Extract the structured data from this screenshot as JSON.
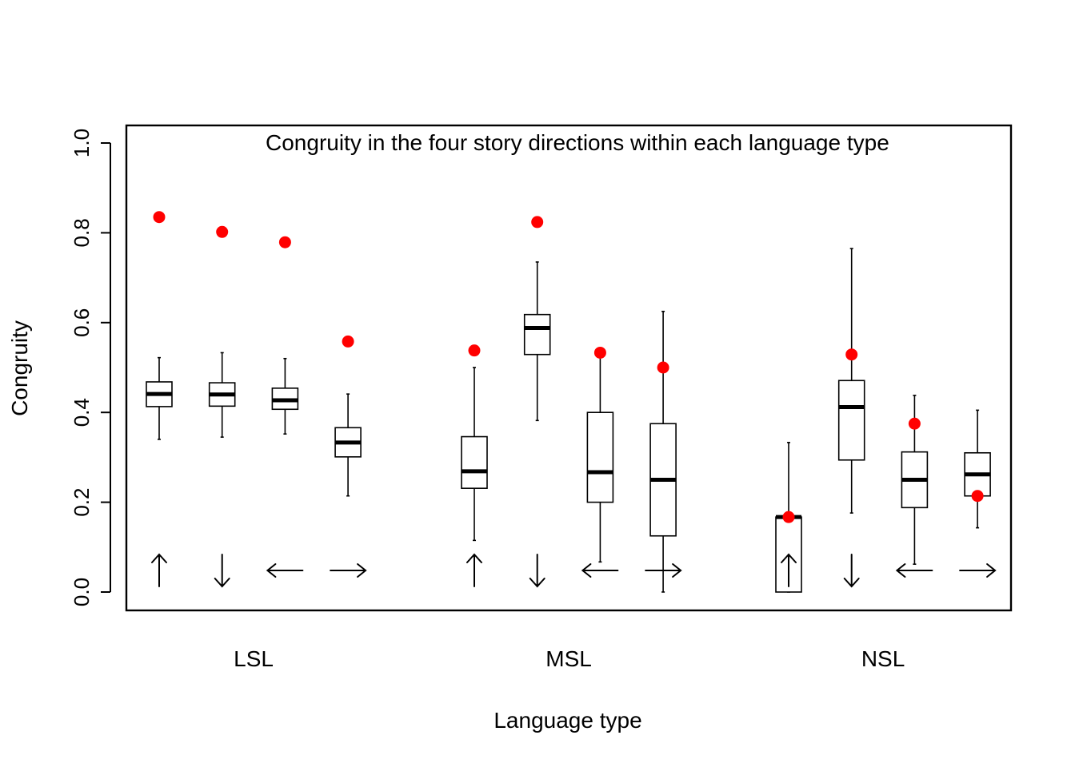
{
  "chart_data": {
    "type": "boxplot",
    "title": "Congruity in the four story directions within each language type",
    "xlabel": "Language type",
    "ylabel": "Congruity",
    "ylim": [
      0.0,
      1.0
    ],
    "yticks": [
      "0.0",
      "0.2",
      "0.4",
      "0.6",
      "0.8",
      "1.0"
    ],
    "ytick_values": [
      0.0,
      0.2,
      0.4,
      0.6,
      0.8,
      1.0
    ],
    "colors": {
      "box": "#000000",
      "observed_point": "#ff0000"
    },
    "groups": [
      {
        "label": "LSL",
        "boxes": [
          {
            "direction": "up",
            "arrow": "↑",
            "min": 0.34,
            "q1": 0.413,
            "median": 0.441,
            "q3": 0.468,
            "max": 0.522,
            "observed": 0.835
          },
          {
            "direction": "down",
            "arrow": "↓",
            "min": 0.345,
            "q1": 0.414,
            "median": 0.44,
            "q3": 0.466,
            "max": 0.533,
            "observed": 0.802
          },
          {
            "direction": "left",
            "arrow": "←",
            "min": 0.352,
            "q1": 0.407,
            "median": 0.427,
            "q3": 0.454,
            "max": 0.52,
            "observed": 0.779
          },
          {
            "direction": "right",
            "arrow": "→",
            "min": 0.214,
            "q1": 0.301,
            "median": 0.333,
            "q3": 0.366,
            "max": 0.441,
            "observed": 0.558
          }
        ]
      },
      {
        "label": "MSL",
        "boxes": [
          {
            "direction": "up",
            "arrow": "↑",
            "min": 0.115,
            "q1": 0.231,
            "median": 0.269,
            "q3": 0.346,
            "max": 0.5,
            "observed": 0.538
          },
          {
            "direction": "down",
            "arrow": "↓",
            "min": 0.382,
            "q1": 0.529,
            "median": 0.588,
            "q3": 0.618,
            "max": 0.735,
            "observed": 0.824
          },
          {
            "direction": "left",
            "arrow": "←",
            "min": 0.067,
            "q1": 0.2,
            "median": 0.267,
            "q3": 0.4,
            "max": 0.533,
            "observed": 0.533
          },
          {
            "direction": "right",
            "arrow": "→",
            "min": 0.0,
            "q1": 0.125,
            "median": 0.25,
            "q3": 0.375,
            "max": 0.625,
            "observed": 0.5
          }
        ]
      },
      {
        "label": "NSL",
        "boxes": [
          {
            "direction": "up",
            "arrow": "↑",
            "min": 0.0,
            "q1": 0.0,
            "median": 0.167,
            "q3": 0.167,
            "max": 0.333,
            "observed": 0.167
          },
          {
            "direction": "down",
            "arrow": "↓",
            "min": 0.176,
            "q1": 0.294,
            "median": 0.412,
            "q3": 0.471,
            "max": 0.765,
            "observed": 0.529
          },
          {
            "direction": "left",
            "arrow": "←",
            "min": 0.062,
            "q1": 0.188,
            "median": 0.25,
            "q3": 0.312,
            "max": 0.438,
            "observed": 0.375
          },
          {
            "direction": "right",
            "arrow": "→",
            "min": 0.143,
            "q1": 0.214,
            "median": 0.262,
            "q3": 0.31,
            "max": 0.405,
            "observed": 0.214
          }
        ]
      }
    ]
  }
}
